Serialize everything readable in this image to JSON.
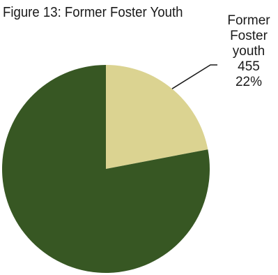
{
  "chart_data": {
    "type": "pie",
    "title": "Figure 13: Former Foster Youth",
    "slices": [
      {
        "label_lines": [
          "Former",
          "Foster",
          "youth"
        ],
        "value": 455,
        "percent_label": "22%",
        "color": "#dbd391"
      },
      {
        "label_lines": [],
        "value": 1613,
        "percent_label": "",
        "color": "#375723"
      }
    ],
    "start_angle_deg": 0,
    "direction": "clockwise"
  }
}
